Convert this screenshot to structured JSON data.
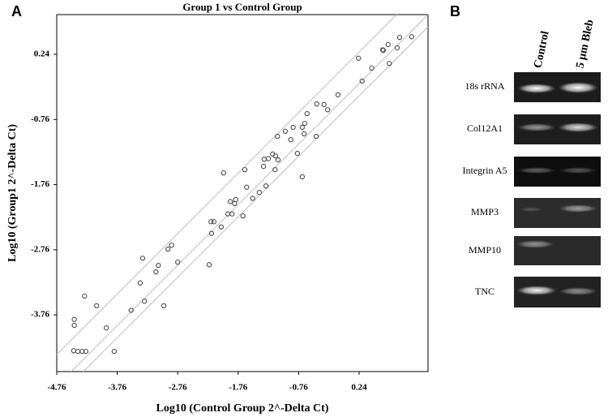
{
  "panels": {
    "a": "A",
    "b": "B"
  },
  "chart_data": {
    "type": "scatter",
    "title": "Group 1 vs Control Group",
    "x_label": "Log10 (Control Group 2^-Delta Ct)",
    "y_label": "Log10 (Group1 2^-Delta Ct)",
    "color": "#4a4a4a",
    "reference_color": "#bdbdbd",
    "xlim": [
      -4.76,
      1.38
    ],
    "ylim": [
      -4.63,
      0.85
    ],
    "xticks": [
      -4.76,
      -3.76,
      -2.76,
      -1.76,
      -0.76,
      0.24
    ],
    "yticks": [
      0.24,
      -0.76,
      -1.76,
      -2.76,
      -3.76
    ],
    "reference_lines": [
      {
        "x": [
          -4.76,
          0.86
        ],
        "y": [
          -4.37,
          0.85
        ]
      },
      {
        "x": [
          -4.52,
          1.38
        ],
        "y": [
          -4.63,
          0.85
        ]
      },
      {
        "x": [
          -4.32,
          1.38
        ],
        "y": [
          -4.63,
          0.66
        ]
      }
    ],
    "x": [
      -4.47,
      -4.47,
      -4.48,
      -4.41,
      -4.34,
      -4.28,
      -3.81,
      -4.3,
      -4.1,
      -3.94,
      -3.53,
      -3.38,
      -3.31,
      -3.34,
      -3.12,
      -3.08,
      -2.99,
      -2.92,
      -2.86,
      -2.76,
      -2.24,
      -2.21,
      -2.16,
      -2.2,
      -2.04,
      -2.0,
      -1.93,
      -1.86,
      -1.89,
      -1.82,
      -1.8,
      -1.68,
      -1.62,
      -1.65,
      -1.52,
      -1.41,
      -1.3,
      -1.33,
      -1.34,
      -1.26,
      -1.19,
      -1.14,
      -1.1,
      -1.15,
      -0.78,
      -1.11,
      -0.98,
      -0.85,
      -0.89,
      -0.7,
      -0.66,
      -0.67,
      -0.7,
      -0.62,
      -0.47,
      -0.46,
      -0.34,
      -0.28,
      -0.11,
      0.23,
      0.29,
      0.45,
      0.63,
      0.64,
      0.72,
      0.74,
      0.87,
      0.91,
      1.11
    ],
    "values": [
      -3.83,
      -3.92,
      -4.31,
      -4.32,
      -4.32,
      -4.32,
      -4.32,
      -3.47,
      -3.62,
      -3.96,
      -3.69,
      -3.27,
      -3.55,
      -2.89,
      -3.1,
      -3.0,
      -3.62,
      -2.75,
      -2.69,
      -2.95,
      -2.99,
      -2.33,
      -2.33,
      -2.51,
      -2.41,
      -1.58,
      -2.21,
      -2.21,
      -2.02,
      -2.05,
      -1.99,
      -2.24,
      -1.8,
      -1.53,
      -1.97,
      -1.88,
      -1.78,
      -1.37,
      -1.48,
      -1.36,
      -1.29,
      -1.32,
      -1.38,
      -1.53,
      -1.28,
      -1.02,
      -0.94,
      -0.88,
      -1.07,
      -0.88,
      -0.82,
      -0.98,
      -1.64,
      -0.67,
      -1.02,
      -0.52,
      -0.53,
      -0.61,
      -0.38,
      0.18,
      -0.17,
      0.03,
      0.31,
      0.3,
      0.39,
      0.1,
      0.34,
      0.5,
      0.51
    ]
  },
  "gel": {
    "columns": [
      "Control",
      "5 μm Bleb"
    ],
    "rows": [
      "18s rRNA",
      "Col12A1",
      "Integrin A5",
      "MMP3",
      "MMP10",
      "TNC"
    ]
  }
}
